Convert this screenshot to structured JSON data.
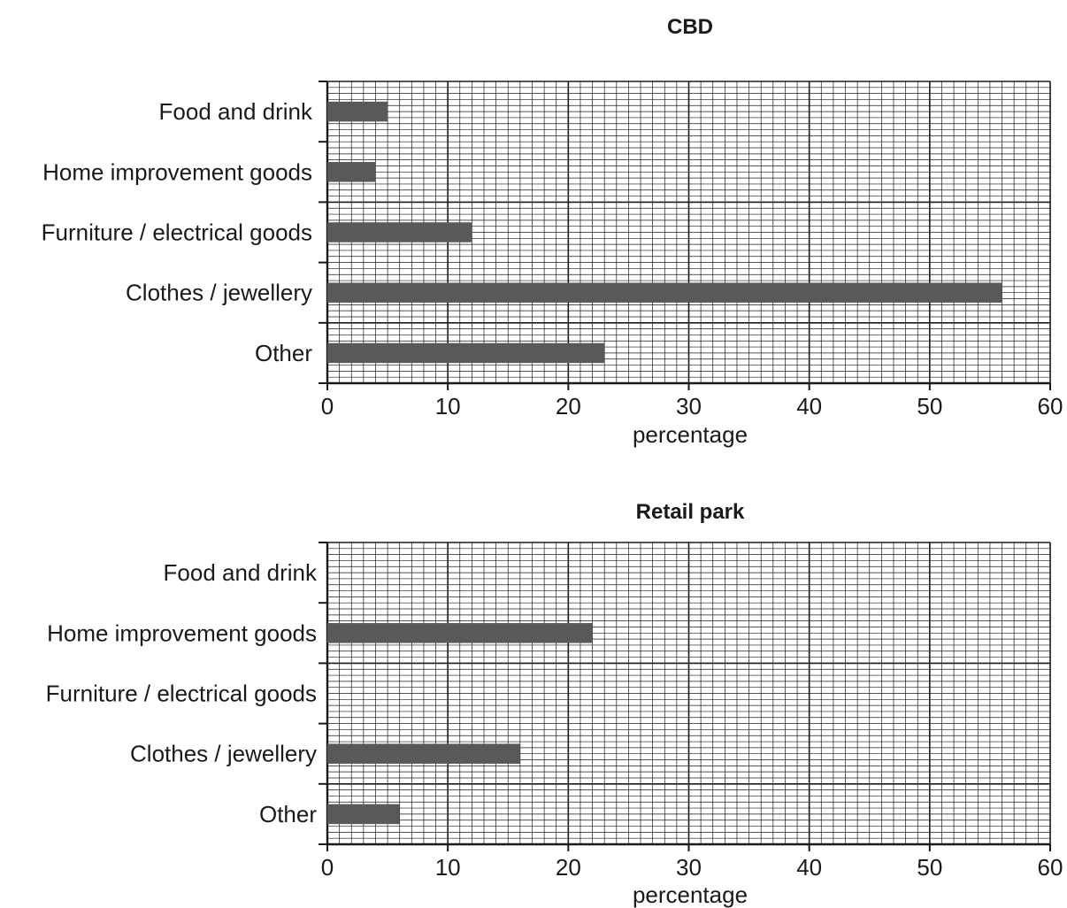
{
  "chart_data": [
    {
      "type": "bar",
      "orientation": "horizontal",
      "title": "CBD",
      "xlabel": "percentage",
      "ylabel": "",
      "categories": [
        "Food and drink",
        "Home improvement goods",
        "Furniture / electrical goods",
        "Clothes / jewellery",
        "Other"
      ],
      "values": [
        5,
        4,
        12,
        56,
        23
      ],
      "xlim": [
        0,
        60
      ],
      "xticks": [
        "0",
        "10",
        "20",
        "30",
        "40",
        "50",
        "60"
      ],
      "grid": true,
      "bar_color": "#595959"
    },
    {
      "type": "bar",
      "orientation": "horizontal",
      "title": "Retail park",
      "xlabel": "percentage",
      "ylabel": "",
      "categories": [
        "Food and drink",
        "Home improvement goods",
        "Furniture / electrical goods",
        "Clothes / jewellery",
        "Other"
      ],
      "values": [
        null,
        22,
        null,
        16,
        6
      ],
      "xlim": [
        0,
        60
      ],
      "xticks": [
        "0",
        "10",
        "20",
        "30",
        "40",
        "50",
        "60"
      ],
      "grid": true,
      "bar_color": "#595959"
    }
  ]
}
